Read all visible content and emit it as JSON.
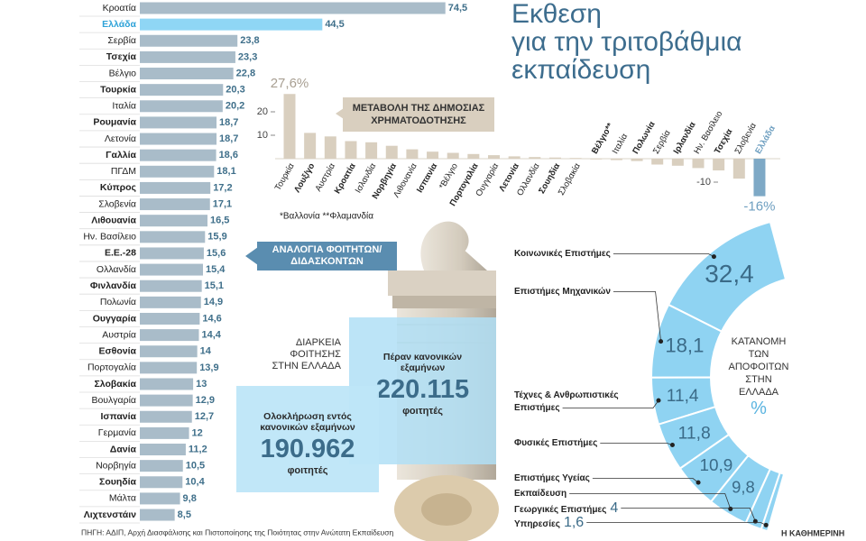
{
  "header": {
    "title_lines": [
      "Εκθεση",
      "για την τριτοβάθμια",
      "εκπαίδευση"
    ]
  },
  "chart_data": [
    {
      "type": "hbar",
      "title_lines": [
        "ΑΝΑΛΟΓΙΑ ΦΟΙΤΗΤΩΝ/",
        "ΔΙΔΑΣΚΟΝΤΩΝ"
      ],
      "categories": [
        "Κροατία",
        "Ελλάδα",
        "Σερβία",
        "Τσεχία",
        "Βέλγιο",
        "Τουρκία",
        "Ιταλία",
        "Ρουμανία",
        "Λετονία",
        "Γαλλία",
        "ΠΓΔΜ",
        "Κύπρος",
        "Σλοβενία",
        "Λιθουανία",
        "Ην. Βασίλειο",
        "Ε.Ε.-28",
        "Ολλανδία",
        "Φινλανδία",
        "Πολωνία",
        "Ουγγαρία",
        "Αυστρία",
        "Εσθονία",
        "Πορτογαλία",
        "Σλοβακία",
        "Βουλγαρία",
        "Ισπανία",
        "Γερμανία",
        "Δανία",
        "Νορβηγία",
        "Σουηδία",
        "Μάλτα",
        "Λιχτενστάιν"
      ],
      "values": [
        74.5,
        44.5,
        23.8,
        23.3,
        22.8,
        20.3,
        20.2,
        18.7,
        18.7,
        18.6,
        18.1,
        17.2,
        17.1,
        16.5,
        15.9,
        15.6,
        15.4,
        15.1,
        14.9,
        14.6,
        14.4,
        14,
        13.9,
        13,
        12.9,
        12.7,
        12,
        11.2,
        10.5,
        10.4,
        9.8,
        8.5
      ],
      "value_labels": [
        "74,5",
        "44,5",
        "23,8",
        "23,3",
        "22,8",
        "20,3",
        "20,2",
        "18,7",
        "18,7",
        "18,6",
        "18,1",
        "17,2",
        "17,1",
        "16,5",
        "15,9",
        "15,6",
        "15,4",
        "15,1",
        "14,9",
        "14,6",
        "14,4",
        "14",
        "13,9",
        "13",
        "12,9",
        "12,7",
        "12",
        "11,2",
        "10,5",
        "10,4",
        "9,8",
        "8,5"
      ],
      "xlim": [
        0,
        75
      ],
      "color": "#a9bcc9",
      "highlight": 1,
      "highlight_color": "#8fd6f5"
    },
    {
      "type": "bar",
      "title_lines": [
        "ΜΕΤΑΒΟΛΗ ΤΗΣ ΔΗΜΟΣΙΑΣ",
        "ΧΡΗΜΑΤΟΔΟΤΗΣΗΣ"
      ],
      "categories": [
        "Τουρκία",
        "Λουξ/γο",
        "Αυστρία",
        "Κροατία",
        "Ισλανδία",
        "Νορβηγία",
        "Λιθουανία",
        "Ισπανία",
        "*Βέλγιο",
        "Πορτογαλία",
        "Ουγγαρία",
        "Λετονία",
        "Ολλανδία",
        "Σουηδία",
        "Σλοβακία",
        "Βέλγιο**",
        "Ιταλία",
        "Πολωνία",
        "Σερβία",
        "Ιρλανδία",
        "Ην. Βασίλειο",
        "Τσεχία",
        "Σλοβενία",
        "Ελλάδα"
      ],
      "values": [
        27.6,
        11,
        9.5,
        7.5,
        7,
        5.5,
        4,
        3,
        2.5,
        2,
        1.5,
        1,
        0.7,
        0.5,
        0.3,
        -0.3,
        -0.6,
        -1,
        -2.5,
        -3,
        -4,
        -5,
        -8.5,
        -16
      ],
      "value_labels": [
        "27,6%",
        null,
        null,
        null,
        null,
        null,
        null,
        null,
        null,
        null,
        null,
        null,
        null,
        null,
        null,
        null,
        null,
        null,
        null,
        null,
        null,
        null,
        null,
        "-16%"
      ],
      "ylim": [
        -17,
        30
      ],
      "yticks": [
        -10,
        10,
        20
      ],
      "color": "#d9cfbf",
      "highlight": 23,
      "highlight_color": "#7ea9c6",
      "note": "*Βαλλονία **Φλαμανδία"
    },
    {
      "type": "donut",
      "title_lines": [
        "ΚΑΤΑΝΟΜΗ",
        "ΤΩΝ",
        "ΑΠΟΦΟΙΤΩΝ",
        "ΣΤΗΝ",
        "ΕΛΛΑΔΑ"
      ],
      "unit": "%",
      "categories": [
        "Κοινωνικές Επιστήμες",
        "Επιστήμες Μηχανικών",
        "Τέχνες & Ανθρωπιστικές Επιστήμες",
        "Φυσικές Επιστήμες",
        "Επιστήμες Υγείας",
        "Εκπαίδευση",
        "Γεωργικές Επιστήμες",
        "Υπηρεσίες"
      ],
      "values": [
        32.4,
        18.1,
        11.4,
        11.8,
        10.9,
        9.8,
        4,
        1.6
      ],
      "value_labels": [
        "32,4",
        "18,1",
        "11,4",
        "11,8",
        "10,9",
        "9,8",
        "4",
        "1,6"
      ],
      "color": "#8fd3f2"
    }
  ],
  "duration": {
    "title_lines": [
      "ΔΙΑΡΚΕΙΑ",
      "ΦΟΙΤΗΣΗΣ",
      "ΣΤΗΝ ΕΛΛΑΔΑ"
    ],
    "boxes": [
      {
        "label_lines": [
          "Πέραν κανονικών",
          "εξαμήνων"
        ],
        "number": "220.115",
        "unit": "φοιτητές"
      },
      {
        "label_lines": [
          "Ολοκλήρωση εντός",
          "κανονικών εξαμήνων"
        ],
        "number": "190.962",
        "unit": "φοιτητές"
      }
    ]
  },
  "footer": {
    "source": "ΠΗΓΗ: ΑΔΙΠ, Αρχή Διασφάλισης και Πιστοποίησης της Ποιότητας στην Ανώτατη Εκπαίδευση",
    "credit": "Η ΚΑΘΗΜΕΡΙΝΗ"
  }
}
